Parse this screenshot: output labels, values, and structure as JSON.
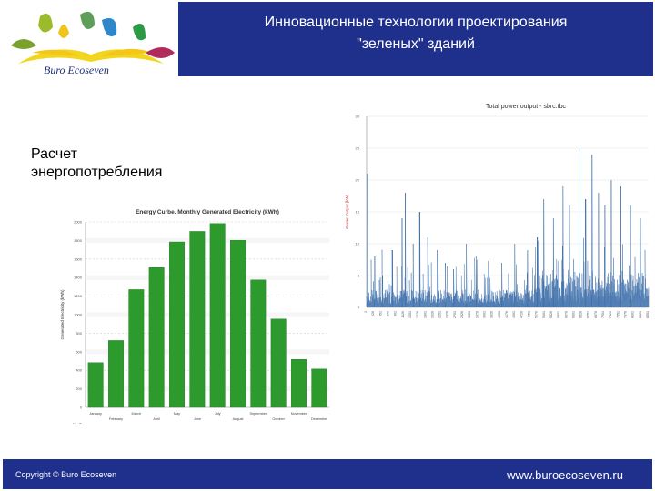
{
  "header": {
    "title_line1": "Инновационные технологии проектирования",
    "title_line2": "\"зеленых\" зданий"
  },
  "logo": {
    "text": "Buro Ecoseven",
    "icon": "leaf-sun-logo"
  },
  "left_label": {
    "line1": "Расчет",
    "line2": "энергопотребления"
  },
  "footer": {
    "copyright": "Copyright © Buro Ecoseven",
    "website": "www.buroecoseven.ru"
  },
  "colors": {
    "header_bg": "#1f2f8c",
    "bar_green": "#2d9a2d",
    "line_blue": "#4a78b0"
  },
  "chart_data": [
    {
      "type": "bar",
      "title": "Energy Curbe. Monthly Generated Electricity (kWh)",
      "xlabel": "",
      "ylabel": "Generated Electricity (kWh)",
      "ylim": [
        0,
        2000
      ],
      "yticks": [
        0,
        200,
        400,
        600,
        800,
        1000,
        1200,
        1400,
        1600,
        1800,
        2000
      ],
      "categories": [
        "January",
        "February",
        "March",
        "April",
        "May",
        "June",
        "July",
        "August",
        "September",
        "October",
        "November",
        "December"
      ],
      "row_label": "Electric",
      "row_header": "No. B",
      "values": [
        482.7,
        721.4,
        1270.3,
        1507.3,
        1784.0,
        1897.7,
        1983.0,
        1802.3,
        1374.3,
        953.6,
        517.3,
        414.0
      ],
      "grid": true
    },
    {
      "type": "line",
      "title": "Total power output - sbrc.tbc",
      "xlabel": "",
      "ylabel": "Power Output [kW]",
      "ylim": [
        0,
        30
      ],
      "yticks": [
        0,
        5,
        10,
        15,
        20,
        25,
        30
      ],
      "x_tick_labels": [
        "1",
        "226",
        "451",
        "676",
        "901",
        "1126",
        "1351",
        "1576",
        "1801",
        "2026",
        "2251",
        "2476",
        "2701",
        "2926",
        "3151",
        "3376",
        "3601",
        "3826",
        "4051",
        "4276",
        "4501",
        "4726",
        "4951",
        "5176",
        "5401",
        "5626",
        "5851",
        "6076",
        "6301",
        "6526",
        "6751",
        "6976",
        "7201",
        "7426",
        "7651",
        "7876",
        "8101",
        "8326",
        "8551"
      ],
      "series_peaks": [
        {
          "x": 30,
          "y": 21
        },
        {
          "x": 250,
          "y": 8
        },
        {
          "x": 500,
          "y": 5
        },
        {
          "x": 800,
          "y": 9
        },
        {
          "x": 1100,
          "y": 14
        },
        {
          "x": 1200,
          "y": 18
        },
        {
          "x": 1450,
          "y": 10
        },
        {
          "x": 1650,
          "y": 15
        },
        {
          "x": 1900,
          "y": 11
        },
        {
          "x": 2200,
          "y": 9
        },
        {
          "x": 2450,
          "y": 7
        },
        {
          "x": 2700,
          "y": 6
        },
        {
          "x": 3100,
          "y": 10
        },
        {
          "x": 3400,
          "y": 8
        },
        {
          "x": 3800,
          "y": 6
        },
        {
          "x": 4200,
          "y": 7
        },
        {
          "x": 4600,
          "y": 10
        },
        {
          "x": 5000,
          "y": 9
        },
        {
          "x": 5300,
          "y": 11
        },
        {
          "x": 5500,
          "y": 17
        },
        {
          "x": 5800,
          "y": 14
        },
        {
          "x": 6100,
          "y": 19
        },
        {
          "x": 6300,
          "y": 16
        },
        {
          "x": 6600,
          "y": 25
        },
        {
          "x": 6800,
          "y": 17
        },
        {
          "x": 7000,
          "y": 24
        },
        {
          "x": 7200,
          "y": 18
        },
        {
          "x": 7400,
          "y": 16
        },
        {
          "x": 7600,
          "y": 20
        },
        {
          "x": 7900,
          "y": 19
        },
        {
          "x": 8200,
          "y": 16
        },
        {
          "x": 8500,
          "y": 14
        }
      ],
      "xlim": [
        1,
        8760
      ]
    }
  ]
}
